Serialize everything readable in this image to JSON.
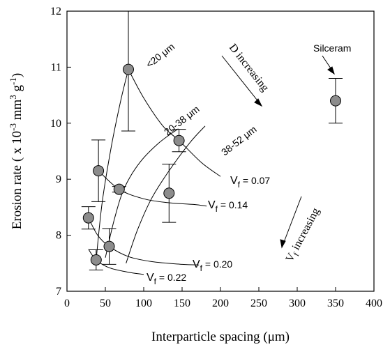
{
  "chart_data": {
    "type": "scatter",
    "xlabel": "Interparticle spacing (μm)",
    "ylabel": "Erosion rate ( x 10^-3 mm^3 g^-1)",
    "xlim": [
      0,
      400
    ],
    "ylim": [
      7,
      12
    ],
    "xticks": [
      0,
      50,
      100,
      150,
      200,
      250,
      300,
      350,
      400
    ],
    "yticks": [
      7,
      8,
      9,
      10,
      11,
      12
    ],
    "grid": false,
    "points": [
      {
        "x": 28,
        "y": 8.31,
        "err": 0.2
      },
      {
        "x": 38,
        "y": 7.56,
        "err": 0.18
      },
      {
        "x": 41,
        "y": 9.15,
        "err": 0.55
      },
      {
        "x": 55,
        "y": 7.8,
        "err": 0.32
      },
      {
        "x": 68,
        "y": 8.82,
        "err": 0.05
      },
      {
        "x": 80,
        "y": 10.96,
        "err": 1.1
      },
      {
        "x": 133,
        "y": 8.75,
        "err": 0.52
      },
      {
        "x": 146,
        "y": 9.69,
        "err": 0.2
      },
      {
        "x": 350,
        "y": 10.4,
        "err": 0.4
      }
    ],
    "curves": [
      {
        "name": "<20 μm",
        "points": [
          [
            38,
            7.56
          ],
          [
            46,
            8.6
          ],
          [
            58,
            9.6
          ],
          [
            70,
            10.4
          ],
          [
            80,
            10.96
          ]
        ]
      },
      {
        "name": "20-38 μm",
        "points": [
          [
            50,
            7.6
          ],
          [
            62,
            8.3
          ],
          [
            75,
            8.85
          ],
          [
            95,
            9.3
          ],
          [
            120,
            9.65
          ],
          [
            145,
            9.9
          ]
        ]
      },
      {
        "name": "38-52 μm",
        "points": [
          [
            77,
            7.5
          ],
          [
            92,
            8.1
          ],
          [
            110,
            8.65
          ],
          [
            133,
            9.15
          ],
          [
            160,
            9.65
          ],
          [
            180,
            9.95
          ]
        ]
      },
      {
        "name": "V_f = 0.07",
        "points": [
          [
            80,
            10.96
          ],
          [
            100,
            10.45
          ],
          [
            125,
            9.95
          ],
          [
            146,
            9.69
          ],
          [
            175,
            9.3
          ],
          [
            200,
            9.05
          ]
        ]
      },
      {
        "name": "V_f = 0.14",
        "points": [
          [
            41,
            9.15
          ],
          [
            68,
            8.82
          ],
          [
            100,
            8.65
          ],
          [
            133,
            8.58
          ],
          [
            165,
            8.55
          ],
          [
            182,
            8.52
          ]
        ]
      },
      {
        "name": "V_f = 0.20",
        "points": [
          [
            28,
            8.31
          ],
          [
            40,
            8.0
          ],
          [
            55,
            7.8
          ],
          [
            80,
            7.62
          ],
          [
            110,
            7.53
          ],
          [
            150,
            7.48
          ],
          [
            172,
            7.47
          ]
        ]
      },
      {
        "name": "V_f = 0.22",
        "points": [
          [
            28,
            7.75
          ],
          [
            38,
            7.56
          ],
          [
            55,
            7.42
          ],
          [
            80,
            7.34
          ],
          [
            100,
            7.3
          ]
        ]
      }
    ],
    "annotations": {
      "silceram": "Silceram",
      "d_increasing": "D increasing",
      "vf_increasing": "V",
      "vf_increasing_sub": "f",
      "vf_increasing_rest": " increasing",
      "label_lt20": "<20 μm",
      "label_20_38": "20-38 μm",
      "label_38_52": "38-52 μm",
      "vf_label_main": "V",
      "vf_label_sub": "f",
      "vf_007_value": " = 0.07",
      "vf_014_value": " = 0.14",
      "vf_020_value": " = 0.20",
      "vf_022_value": " = 0.22"
    }
  }
}
